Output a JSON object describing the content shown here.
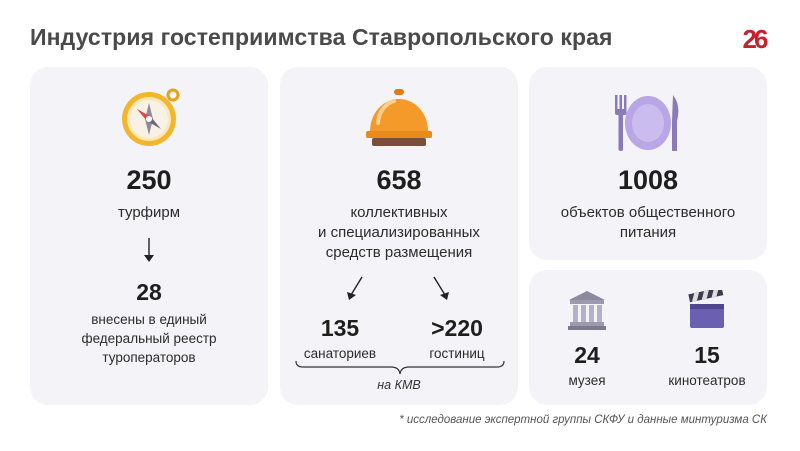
{
  "header": {
    "title": "Индустрия гостеприимства Ставропольского края",
    "logo_text": "26"
  },
  "tourism": {
    "icon": "compass-icon",
    "value": "250",
    "label": "турфирм",
    "sub_value": "28",
    "sub_label_lines": [
      "внесены в единый",
      "федеральный реестр",
      "туроператоров"
    ]
  },
  "lodging": {
    "icon": "reception-bell-icon",
    "value": "658",
    "label_lines": [
      "коллективных",
      "и специализированных",
      "средств размещения"
    ],
    "sanatoriums_value": "135",
    "sanatoriums_label": "санаториев",
    "hotels_value": ">220",
    "hotels_label": "гостиниц",
    "bracket_label": "на КМВ"
  },
  "catering": {
    "icon": "plate-fork-knife-icon",
    "value": "1008",
    "label_lines": [
      "объектов общественного",
      "питания"
    ]
  },
  "culture": {
    "museums_icon": "museum-icon",
    "museums_value": "24",
    "museums_label": "музея",
    "cinemas_icon": "clapperboard-icon",
    "cinemas_value": "15",
    "cinemas_label": "кинотеатров"
  },
  "footnote": "* исследование экспертной группы СКФУ и данные минтуризма СК",
  "colors": {
    "card_bg": "#f4f3f7",
    "title": "#4a4a4a",
    "logo": "#c8202f",
    "bell": "#f39a2b",
    "plate": "#b9a6e6"
  }
}
